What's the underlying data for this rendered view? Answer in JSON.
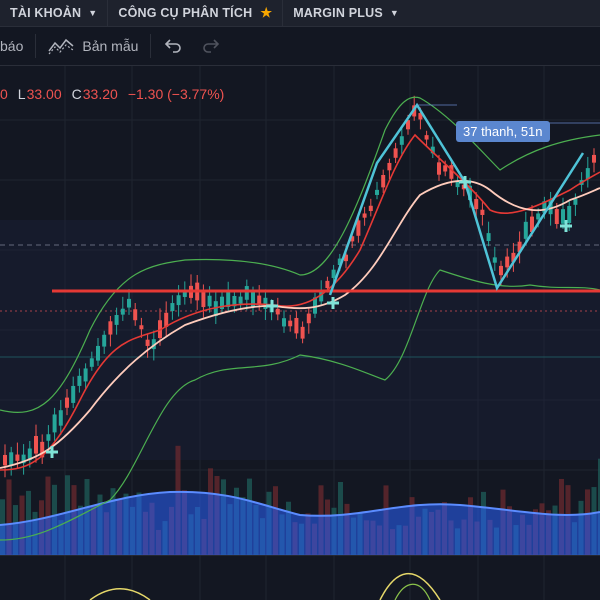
{
  "menu": {
    "account_label": "TÀI KHOẢN",
    "tools_label": "CÔNG CỤ PHÂN TÍCH",
    "margin_label": "MARGIN PLUS"
  },
  "toolbar": {
    "alert_label": "báo",
    "template_label": "Bản mẫu"
  },
  "ohlc": {
    "open_value": "0",
    "low_label": "L",
    "low_value": "33.00",
    "close_label": "C",
    "close_value": "33.20",
    "change": "−1.30 (−3.77%)"
  },
  "pattern_badge": "37 thanh, 51n",
  "colors": {
    "background": "#131722",
    "candle_up": "#26a69a",
    "candle_down": "#ef5350",
    "bollinger": "#4caf50",
    "ma_fast": "#e53935",
    "ma_slow": "#ffccbc",
    "pattern_line": "#4fc3d7",
    "support_line": "#e53935",
    "volume_area": "#2962ff",
    "accent_star": "#f7a600"
  },
  "icons": [
    "caret-down-icon",
    "star-icon",
    "template-icon",
    "undo-icon",
    "redo-icon"
  ]
}
